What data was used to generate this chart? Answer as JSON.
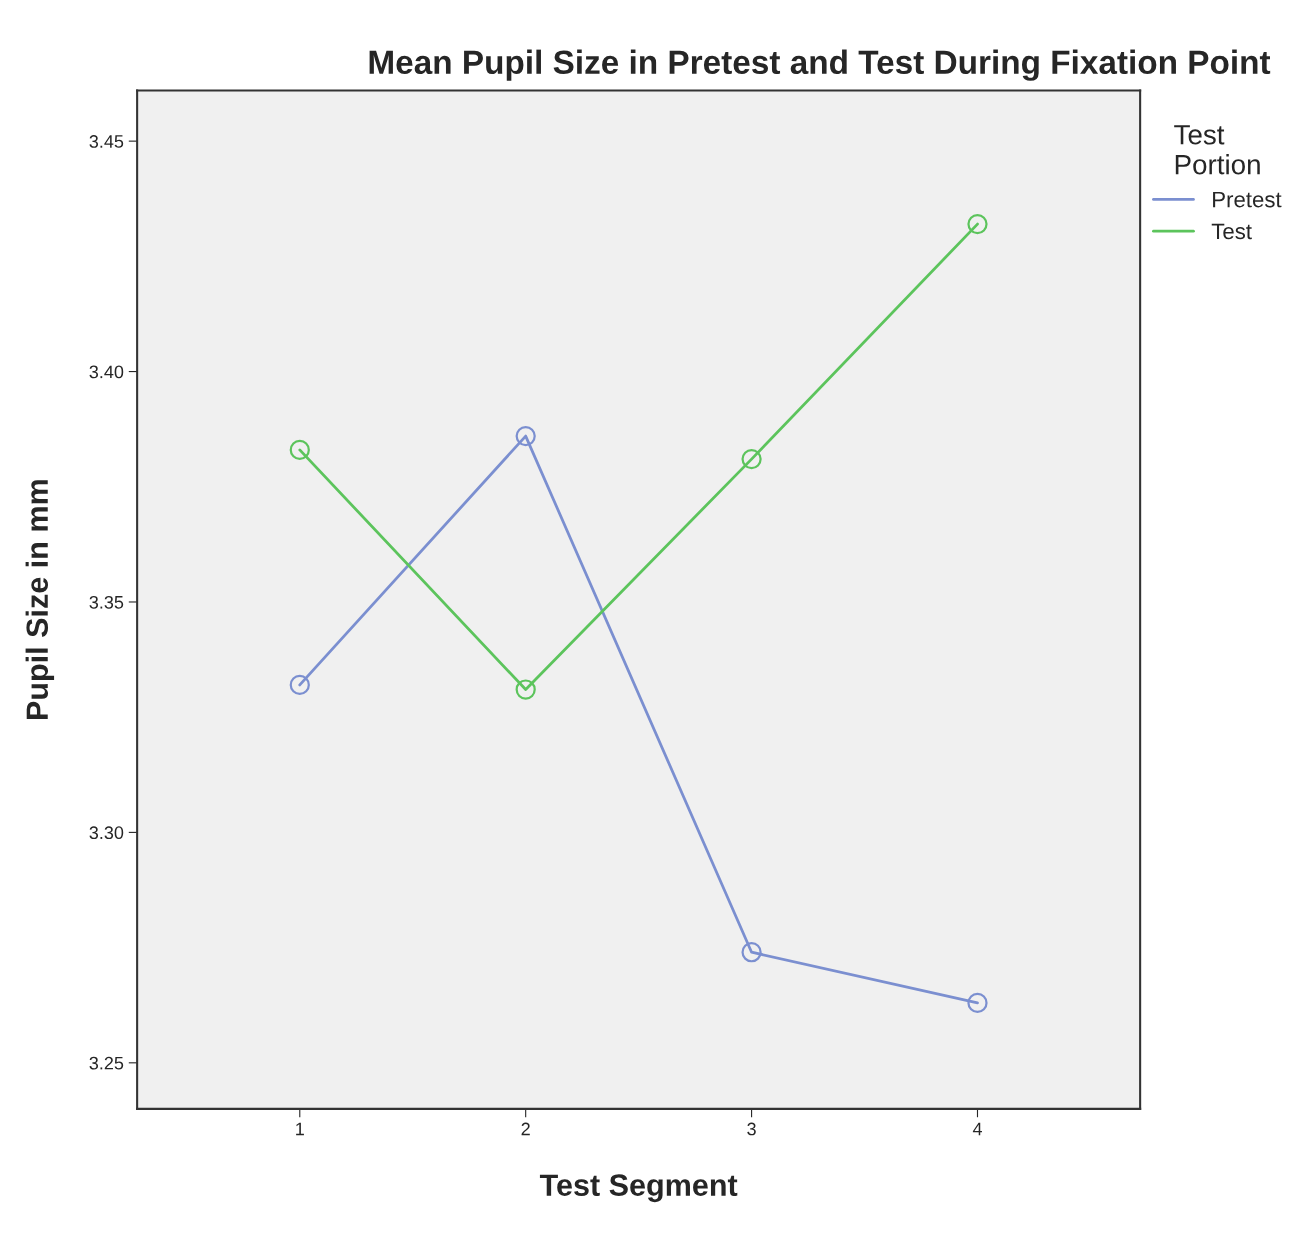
{
  "chart_data": {
    "type": "line",
    "title": "Mean Pupil Size in Pretest and Test During Fixation Point",
    "xlabel": "Test Segment",
    "ylabel": "Pupil Size in mm",
    "legend_title": "Test\nPortion",
    "x": [
      1,
      2,
      3,
      4
    ],
    "series": [
      {
        "name": "Pretest",
        "color": "#7b8fd0",
        "values": [
          3.332,
          3.386,
          3.274,
          3.263
        ]
      },
      {
        "name": "Test",
        "color": "#5cc45c",
        "values": [
          3.383,
          3.331,
          3.381,
          3.432
        ]
      }
    ],
    "xlim": [
      0.28,
      4.72
    ],
    "xticks": [
      1,
      2,
      3,
      4
    ],
    "ylim": [
      3.24,
      3.461
    ],
    "yticks": [
      {
        "value": 3.25,
        "label": "3.25"
      },
      {
        "value": 3.3,
        "label": "3.30"
      },
      {
        "value": 3.35,
        "label": "3.35"
      },
      {
        "value": 3.4,
        "label": "3.40"
      },
      {
        "value": 3.45,
        "label": "3.45"
      }
    ],
    "grid": false,
    "legend": "top right",
    "marker": "circle",
    "line_style": "solid"
  }
}
